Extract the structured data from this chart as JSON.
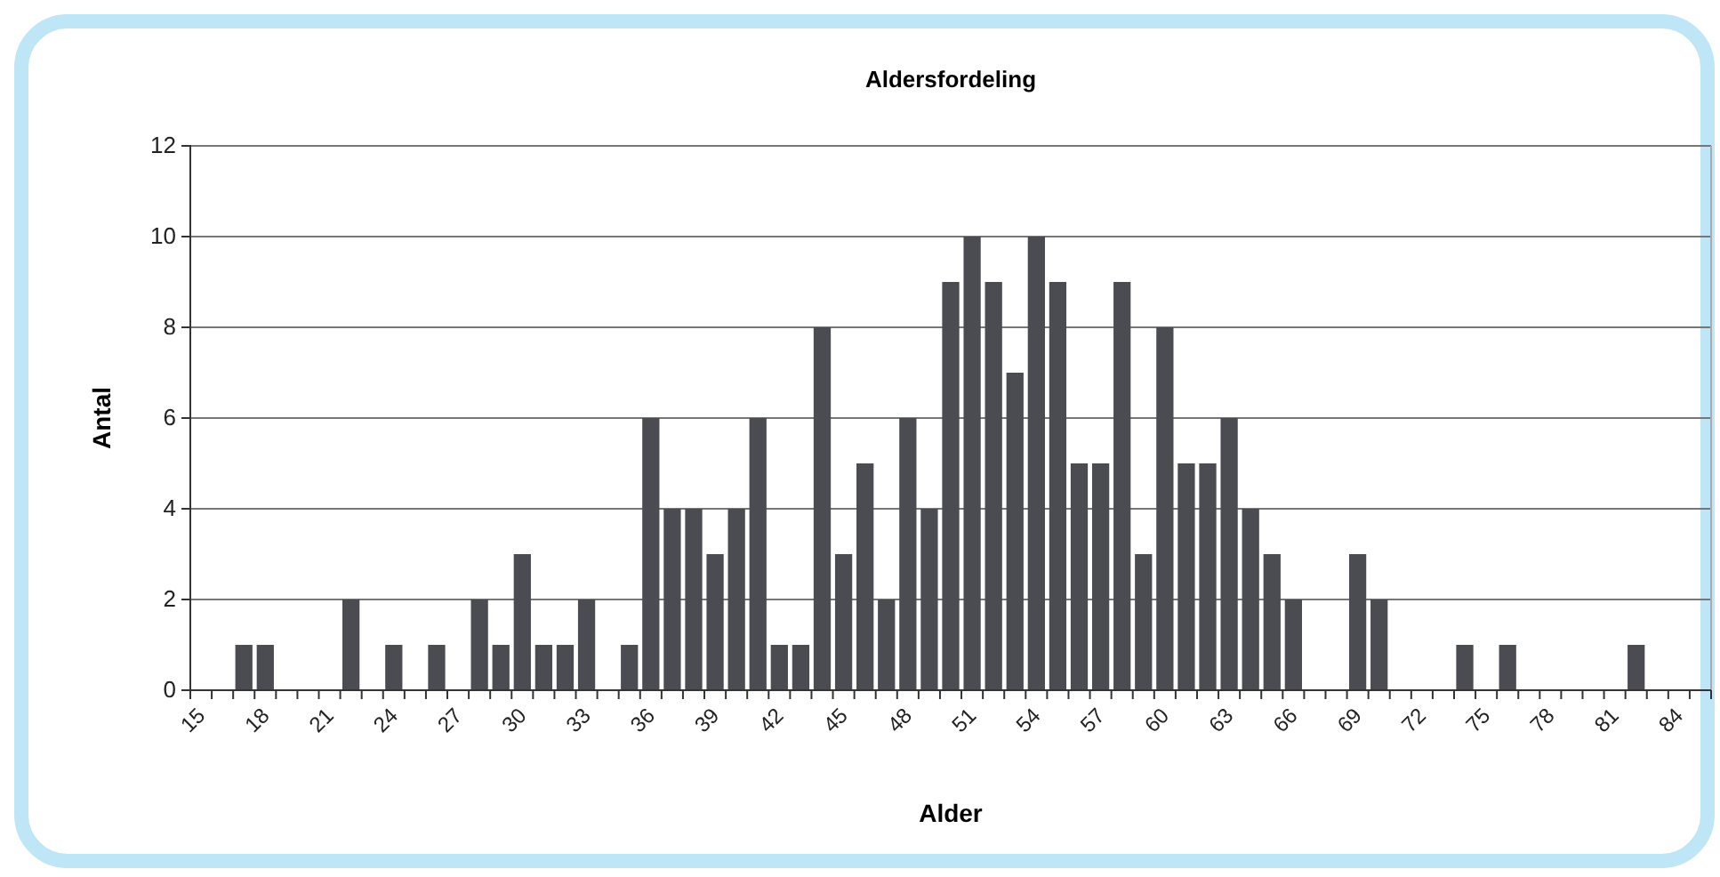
{
  "chart_data": {
    "type": "bar",
    "title": "Aldersfordeling",
    "xlabel": "Alder",
    "ylabel": "Antal",
    "categories": [
      "15",
      null,
      null,
      "18",
      null,
      null,
      "21",
      null,
      null,
      "24",
      null,
      null,
      "27",
      null,
      null,
      "30",
      null,
      null,
      "33",
      null,
      null,
      "36",
      null,
      null,
      "39",
      null,
      null,
      "42",
      null,
      null,
      "45",
      null,
      null,
      "48",
      null,
      null,
      "51",
      null,
      null,
      "54",
      null,
      null,
      "57",
      null,
      null,
      "60",
      null,
      null,
      "63",
      null,
      null,
      "66",
      null,
      null,
      "69",
      null,
      null,
      "72",
      null,
      null,
      "75",
      null,
      null,
      "78",
      null,
      null,
      "81",
      null,
      null,
      "84",
      null
    ],
    "values": [
      0,
      0,
      1,
      1,
      0,
      0,
      0,
      2,
      0,
      1,
      0,
      1,
      0,
      2,
      1,
      3,
      1,
      1,
      2,
      0,
      1,
      6,
      4,
      4,
      3,
      4,
      6,
      1,
      1,
      8,
      3,
      5,
      2,
      6,
      4,
      9,
      10,
      9,
      7,
      10,
      9,
      5,
      5,
      9,
      3,
      8,
      5,
      5,
      6,
      4,
      3,
      2,
      0,
      0,
      3,
      2,
      0,
      0,
      0,
      1,
      0,
      1,
      0,
      0,
      0,
      0,
      0,
      1,
      0,
      0,
      0
    ],
    "color": "#4b4c52",
    "ylim": [
      0,
      12
    ],
    "yticks": [
      0,
      2,
      4,
      6,
      8,
      10,
      12
    ],
    "grid": "y"
  }
}
